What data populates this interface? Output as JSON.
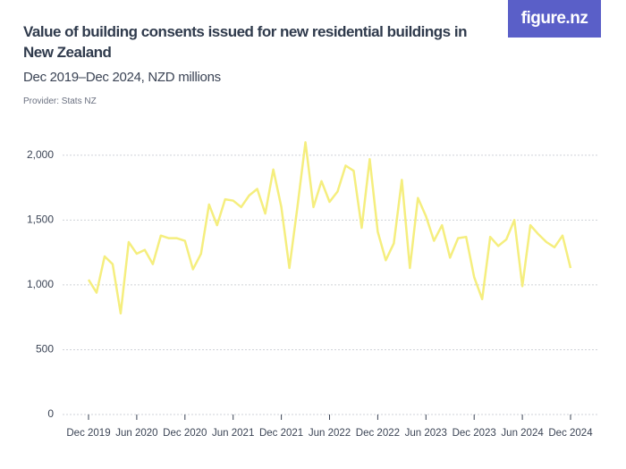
{
  "chart_data": {
    "type": "line",
    "title": "Value of building consents issued for new residential buildings in New Zealand",
    "subtitle": "Dec 2019–Dec 2024, NZD millions",
    "provider": "Provider: Stats NZ",
    "logo": "figure.nz",
    "categories": [
      "Dec 2019",
      null,
      null,
      null,
      null,
      null,
      "Jun 2020",
      null,
      null,
      null,
      null,
      null,
      "Dec 2020",
      null,
      null,
      null,
      null,
      null,
      "Jun 2021",
      null,
      null,
      null,
      null,
      null,
      "Dec 2021",
      null,
      null,
      null,
      null,
      null,
      "Jun 2022",
      null,
      null,
      null,
      null,
      null,
      "Dec 2022",
      null,
      null,
      null,
      null,
      null,
      "Jun 2023",
      null,
      null,
      null,
      null,
      null,
      "Dec 2023",
      null,
      null,
      null,
      null,
      null,
      "Jun 2024",
      null,
      null,
      null,
      null,
      null,
      "Dec 2024"
    ],
    "values": [
      1040,
      940,
      1220,
      1160,
      780,
      1330,
      1240,
      1270,
      1160,
      1380,
      1360,
      1360,
      1340,
      1120,
      1240,
      1620,
      1460,
      1660,
      1650,
      1600,
      1690,
      1740,
      1550,
      1890,
      1600,
      1130,
      1600,
      2100,
      1600,
      1800,
      1640,
      1720,
      1920,
      1880,
      1440,
      1970,
      1410,
      1190,
      1320,
      1810,
      1130,
      1670,
      1530,
      1340,
      1460,
      1210,
      1360,
      1370,
      1060,
      890,
      1370,
      1300,
      1350,
      1500,
      990,
      1460,
      1390,
      1330,
      1290,
      1380,
      1130
    ],
    "color": "#f5ee7e",
    "ylim": [
      0,
      2150
    ],
    "yticks": [
      0,
      500,
      {
        "value": 1000,
        "label": "1,000"
      },
      {
        "value": 1500,
        "label": "1,500"
      },
      {
        "value": 2000,
        "label": "2,000"
      }
    ],
    "grid": true
  }
}
